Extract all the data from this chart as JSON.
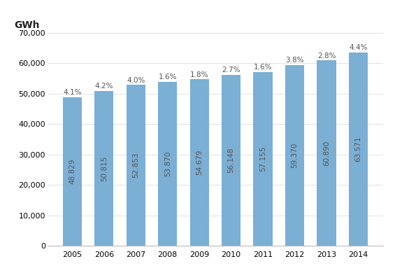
{
  "years": [
    2005,
    2006,
    2007,
    2008,
    2009,
    2010,
    2011,
    2012,
    2013,
    2014
  ],
  "values": [
    48829,
    50815,
    52853,
    53870,
    54679,
    56148,
    57155,
    59370,
    60890,
    63571
  ],
  "percentages": [
    "4.1%",
    "4.2%",
    "4.0%",
    "1.6%",
    "1.8%",
    "2.7%",
    "1.6%",
    "3.8%",
    "2.8%",
    "4.4%"
  ],
  "bar_color": "#7BAFD4",
  "ylabel": "GWh",
  "ylim": [
    0,
    70000
  ],
  "yticks": [
    0,
    10000,
    20000,
    30000,
    40000,
    50000,
    60000,
    70000
  ],
  "bar_text_color": "#555555",
  "pct_text_color": "#555555",
  "background_color": "#ffffff",
  "bar_width": 0.6,
  "ylabel_fontsize": 10,
  "tick_fontsize": 8,
  "annotation_fontsize": 7.5
}
